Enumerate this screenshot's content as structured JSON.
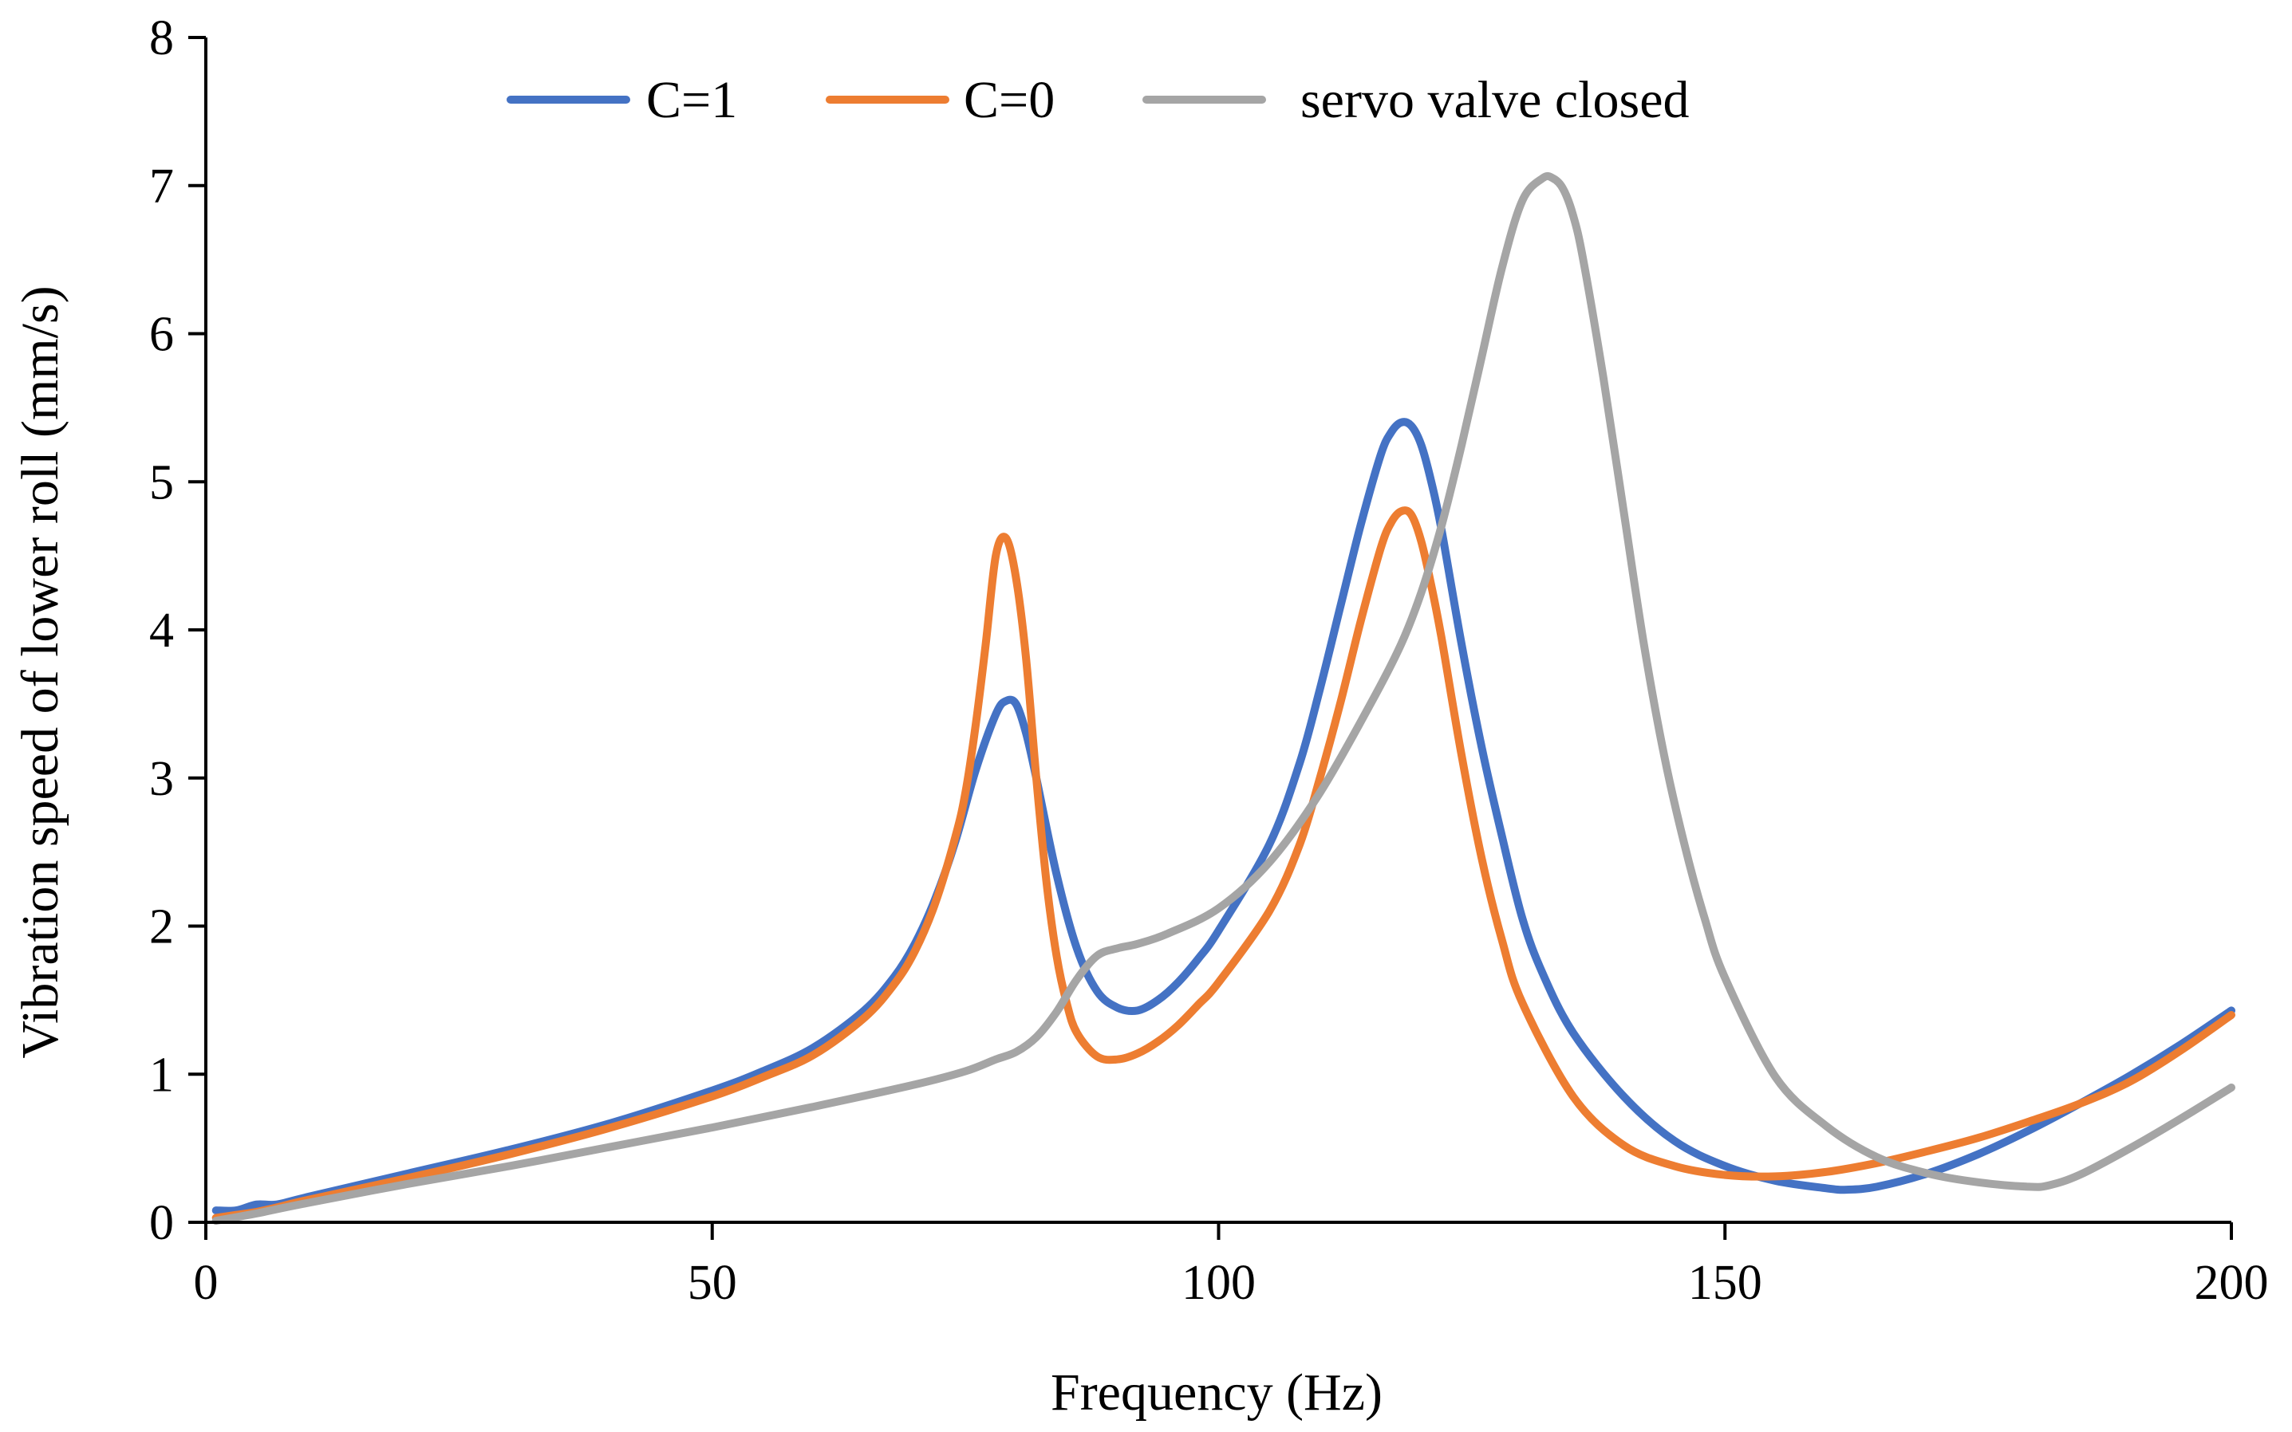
{
  "chart_data": {
    "type": "line",
    "title": "",
    "xlabel": "Frequency  (Hz)",
    "ylabel": "Vibration speed of lower roll  (mm/s)",
    "xlim": [
      0,
      200
    ],
    "ylim": [
      0,
      8
    ],
    "xticks": [
      0,
      50,
      100,
      150,
      200
    ],
    "yticks": [
      0,
      1,
      2,
      3,
      4,
      5,
      6,
      7,
      8
    ],
    "grid": false,
    "legend_position": "top",
    "series": [
      {
        "name": "C=1",
        "color": "#4472C4",
        "x": [
          1,
          3,
          5,
          7,
          10,
          20,
          30,
          40,
          50,
          55,
          60,
          65,
          68,
          70,
          72,
          74,
          76,
          78,
          79,
          80,
          81,
          82,
          84,
          86,
          88,
          90,
          92,
          94,
          96,
          98,
          100,
          105,
          108,
          110,
          112,
          114,
          116,
          117,
          118,
          119,
          120,
          121,
          122,
          124,
          126,
          128,
          130,
          132,
          135,
          140,
          145,
          150,
          155,
          160,
          162,
          165,
          170,
          175,
          180,
          185,
          190,
          195,
          200
        ],
        "y": [
          0.08,
          0.08,
          0.12,
          0.12,
          0.17,
          0.33,
          0.49,
          0.67,
          0.89,
          1.02,
          1.18,
          1.43,
          1.66,
          1.88,
          2.18,
          2.57,
          3.05,
          3.43,
          3.52,
          3.5,
          3.3,
          3.0,
          2.35,
          1.85,
          1.56,
          1.45,
          1.43,
          1.5,
          1.62,
          1.78,
          1.97,
          2.55,
          3.1,
          3.6,
          4.15,
          4.7,
          5.18,
          5.33,
          5.4,
          5.38,
          5.25,
          5.0,
          4.68,
          3.9,
          3.2,
          2.6,
          2.05,
          1.68,
          1.28,
          0.85,
          0.55,
          0.38,
          0.28,
          0.23,
          0.22,
          0.24,
          0.33,
          0.46,
          0.62,
          0.8,
          0.99,
          1.2,
          1.43
        ]
      },
      {
        "name": "C=0",
        "color": "#ED7D31",
        "x": [
          1,
          3,
          5,
          7,
          10,
          20,
          30,
          40,
          50,
          55,
          60,
          65,
          68,
          70,
          72,
          74,
          75,
          76,
          77,
          78,
          79,
          80,
          81,
          82,
          83,
          84,
          85,
          86,
          88,
          90,
          92,
          94,
          96,
          98,
          100,
          105,
          108,
          110,
          112,
          114,
          116,
          117,
          118,
          119,
          120,
          121,
          122,
          124,
          126,
          128,
          130,
          135,
          140,
          145,
          150,
          155,
          160,
          165,
          170,
          175,
          180,
          185,
          190,
          195,
          200
        ],
        "y": [
          0.03,
          0.05,
          0.07,
          0.1,
          0.15,
          0.3,
          0.46,
          0.64,
          0.85,
          0.98,
          1.13,
          1.38,
          1.61,
          1.83,
          2.15,
          2.6,
          2.9,
          3.35,
          3.9,
          4.5,
          4.62,
          4.35,
          3.8,
          3.0,
          2.3,
          1.8,
          1.48,
          1.28,
          1.12,
          1.1,
          1.14,
          1.22,
          1.33,
          1.47,
          1.62,
          2.1,
          2.55,
          3.0,
          3.5,
          4.05,
          4.55,
          4.72,
          4.8,
          4.78,
          4.6,
          4.3,
          3.95,
          3.15,
          2.45,
          1.9,
          1.48,
          0.85,
          0.52,
          0.38,
          0.32,
          0.31,
          0.34,
          0.4,
          0.48,
          0.57,
          0.68,
          0.8,
          0.95,
          1.16,
          1.4
        ]
      },
      {
        "name": "servo valve closed",
        "color": "#A5A5A5",
        "x": [
          1,
          5,
          10,
          20,
          30,
          40,
          50,
          60,
          70,
          75,
          78,
          80,
          82,
          84,
          86,
          88,
          90,
          92,
          95,
          100,
          105,
          110,
          115,
          118,
          120,
          122,
          124,
          126,
          128,
          130,
          132,
          133,
          134,
          135,
          136,
          138,
          140,
          142,
          144,
          146,
          148,
          150,
          155,
          160,
          165,
          170,
          175,
          180,
          182,
          185,
          190,
          195,
          200
        ],
        "y": [
          0.01,
          0.06,
          0.13,
          0.26,
          0.38,
          0.51,
          0.64,
          0.78,
          0.93,
          1.02,
          1.1,
          1.15,
          1.25,
          1.42,
          1.64,
          1.8,
          1.85,
          1.88,
          1.95,
          2.12,
          2.43,
          2.9,
          3.5,
          3.9,
          4.25,
          4.7,
          5.25,
          5.85,
          6.45,
          6.9,
          7.05,
          7.05,
          6.98,
          6.8,
          6.5,
          5.7,
          4.8,
          3.9,
          3.15,
          2.55,
          2.05,
          1.65,
          0.98,
          0.65,
          0.44,
          0.33,
          0.27,
          0.24,
          0.25,
          0.32,
          0.5,
          0.7,
          0.91
        ]
      }
    ]
  }
}
